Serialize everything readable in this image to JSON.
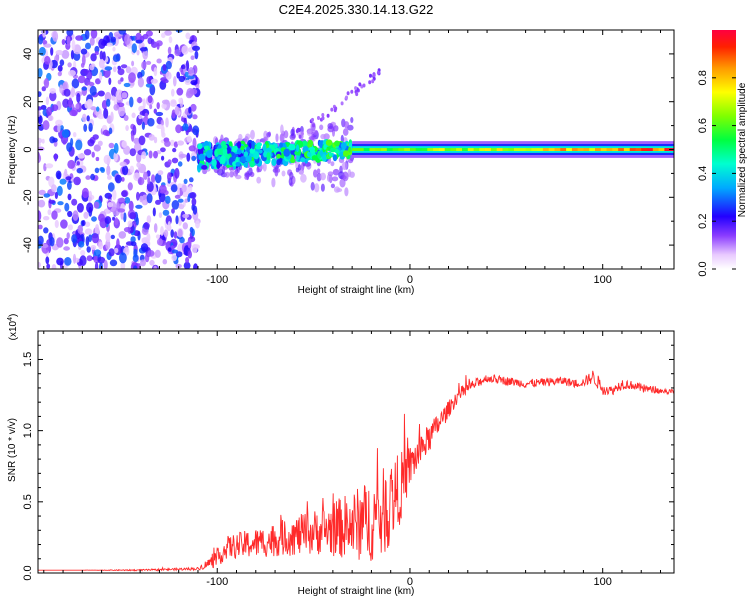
{
  "title": "C2E4.2025.330.14.13.G22",
  "colors": {
    "series_line": "#ff2a2a",
    "frame": "#000000",
    "background": "#ffffff"
  },
  "chart_data": [
    {
      "type": "heatmap",
      "panel": "top",
      "xlabel": "Height of straight line (km)",
      "ylabel": "Frequency (Hz)",
      "xlim": [
        -193,
        137
      ],
      "ylim": [
        -50,
        50
      ],
      "x_ticks": [
        -100,
        0,
        100
      ],
      "x_tick_labels": [
        "-100",
        "0",
        "100"
      ],
      "y_ticks": [
        -40,
        -20,
        0,
        20,
        40
      ],
      "y_tick_labels": [
        "-40",
        "-20",
        "0",
        "20",
        "40"
      ],
      "colorbar": {
        "label": "Normalized spectral amplitude",
        "range": [
          0,
          1
        ],
        "ticks": [
          0.0,
          0.2,
          0.4,
          0.6,
          0.8
        ],
        "tick_labels": [
          "0.0",
          "0.2",
          "0.4",
          "0.6",
          "0.8"
        ]
      },
      "regions": [
        {
          "name": "noise",
          "x_range": [
            -193,
            -110
          ],
          "freq_range": [
            -50,
            50
          ],
          "amplitude": 0.15
        },
        {
          "name": "emerging",
          "x_range": [
            -110,
            -30
          ],
          "freq_center": -3,
          "freq_halfwidth": 5,
          "amplitude": 0.35
        },
        {
          "name": "strong",
          "x_range": [
            -30,
            137
          ],
          "freq_center": 0,
          "freq_halfwidth": 2,
          "amplitude": 0.9
        }
      ]
    },
    {
      "type": "line",
      "panel": "bottom",
      "xlabel": "Height of straight line (km)",
      "ylabel": "SNR (10 * v/v)",
      "multiplier": "(x10",
      "multiplier_exp": "4",
      "multiplier_close": ")",
      "xlim": [
        -193,
        137
      ],
      "ylim": [
        0,
        1.7
      ],
      "x_ticks": [
        -100,
        0,
        100
      ],
      "x_tick_labels": [
        "-100",
        "0",
        "100"
      ],
      "y_ticks": [
        0.0,
        0.5,
        1.0,
        1.5
      ],
      "y_tick_labels": [
        "0.0",
        "0.5",
        "1.0",
        "1.5"
      ],
      "series": [
        {
          "name": "SNR",
          "x": [
            -193,
            -170,
            -140,
            -110,
            -100,
            -95,
            -85,
            -75,
            -65,
            -55,
            -45,
            -35,
            -25,
            -15,
            -10,
            -5,
            0,
            5,
            10,
            15,
            20,
            25,
            30,
            40,
            50,
            60,
            70,
            80,
            85,
            90,
            95,
            100,
            105,
            110,
            115,
            120,
            130,
            137
          ],
          "values": [
            0.02,
            0.02,
            0.02,
            0.03,
            0.1,
            0.18,
            0.2,
            0.22,
            0.25,
            0.27,
            0.3,
            0.32,
            0.35,
            0.4,
            0.5,
            0.6,
            0.75,
            0.85,
            0.95,
            1.05,
            1.15,
            1.25,
            1.3,
            1.37,
            1.35,
            1.33,
            1.34,
            1.35,
            1.33,
            1.34,
            1.38,
            1.3,
            1.28,
            1.33,
            1.32,
            1.3,
            1.28,
            1.27
          ],
          "noise_amplitude": [
            0.0,
            0.0,
            0.005,
            0.01,
            0.06,
            0.08,
            0.1,
            0.11,
            0.13,
            0.15,
            0.17,
            0.22,
            0.27,
            0.32,
            0.3,
            0.25,
            0.15,
            0.12,
            0.1,
            0.08,
            0.06,
            0.05,
            0.04,
            0.03,
            0.03,
            0.03,
            0.03,
            0.03,
            0.03,
            0.03,
            0.05,
            0.05,
            0.03,
            0.04,
            0.03,
            0.03,
            0.02,
            0.02
          ]
        }
      ]
    }
  ]
}
